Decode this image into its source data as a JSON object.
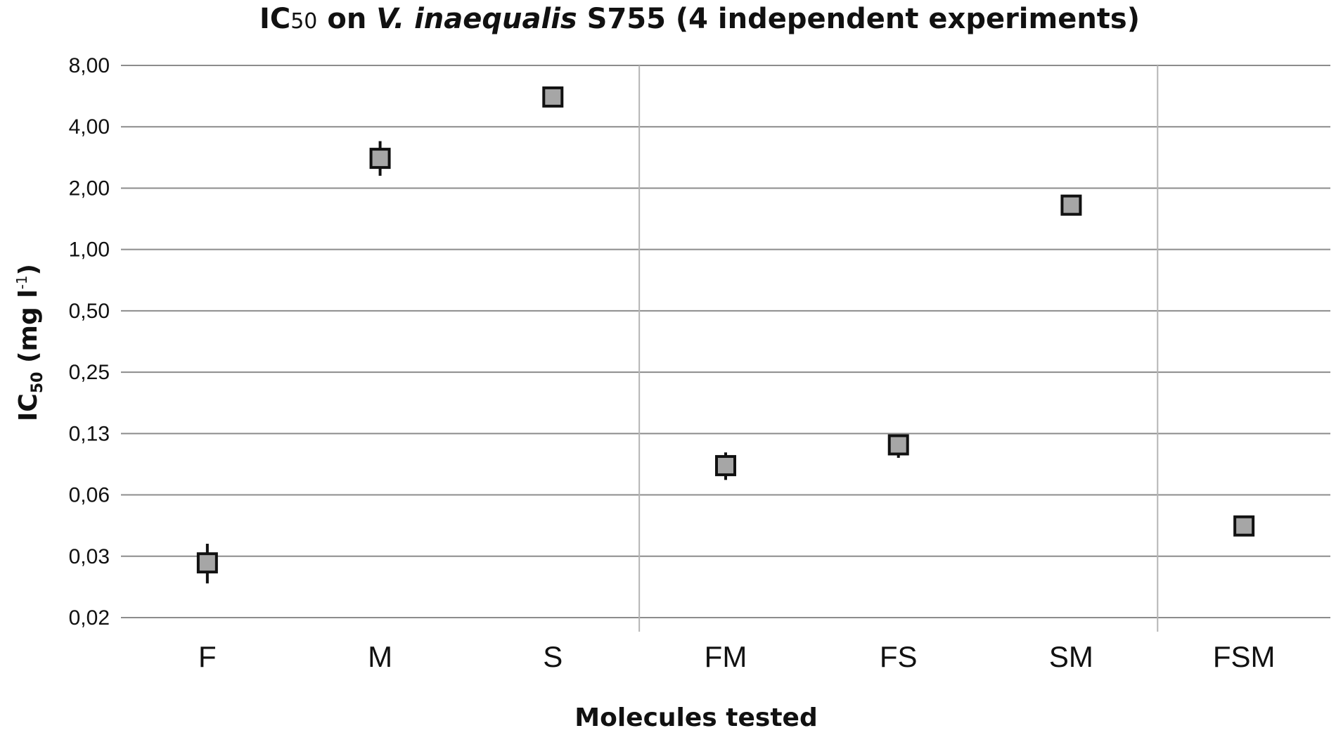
{
  "chart_data": {
    "type": "scatter",
    "title": {
      "prefix": "IC",
      "sub": "50",
      "mid": " on ",
      "italic": "V. inaequalis",
      "suffix": " S755 (4 independent experiments)"
    },
    "xlabel": "Molecules tested",
    "ylabel": {
      "main": "IC",
      "sub": "50",
      "rest": " (mg l",
      "sup": "-1",
      "close": ")"
    },
    "y_scale": "log2",
    "y_ticks": [
      "0,02",
      "0,03",
      "0,06",
      "0,13",
      "0,25",
      "0,50",
      "1,00",
      "2,00",
      "4,00",
      "8,00"
    ],
    "ylim": [
      0.015625,
      8
    ],
    "categories": [
      "F",
      "M",
      "S",
      "FM",
      "FS",
      "SM",
      "FSM"
    ],
    "series": [
      {
        "values": [
          0.029,
          2.8,
          5.6,
          0.087,
          0.11,
          1.65,
          0.044
        ],
        "err_low": [
          0.023,
          2.3,
          5.0,
          0.074,
          0.095,
          1.55,
          0.041
        ],
        "err_high": [
          0.036,
          3.4,
          6.3,
          0.101,
          0.12,
          1.7,
          0.045
        ]
      }
    ],
    "group_separators_after": [
      "S",
      "SM"
    ],
    "grid": true,
    "colors": {
      "marker_fill": "#a6a6a6",
      "marker_edge": "#111111",
      "grid": "#8c8c8c"
    }
  }
}
